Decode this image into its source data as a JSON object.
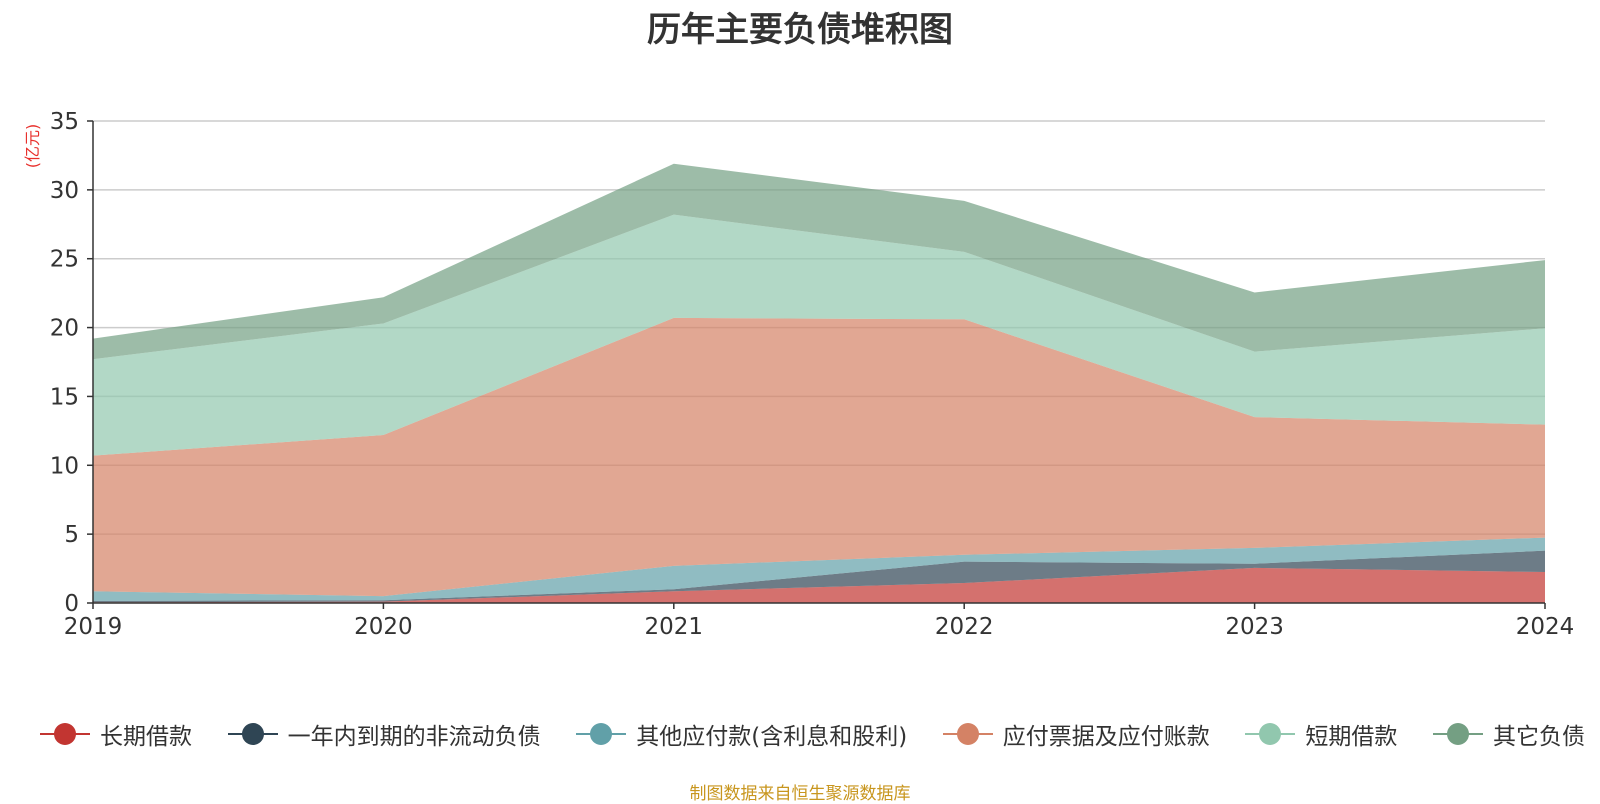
{
  "chart_data": {
    "type": "area",
    "stacked": true,
    "title": "历年主要负债堆积图",
    "ylabel": "(亿元)",
    "xlabel": "",
    "x": [
      "2019",
      "2020",
      "2021",
      "2022",
      "2023",
      "2024"
    ],
    "ylim": [
      0,
      35
    ],
    "yticks": [
      0,
      5,
      10,
      15,
      20,
      25,
      30,
      35
    ],
    "grid": true,
    "legend_position": "bottom",
    "series": [
      {
        "name": "长期借款",
        "color": "#c23531",
        "values": [
          0.05,
          0.1,
          0.85,
          1.45,
          2.55,
          2.25
        ]
      },
      {
        "name": "一年内到期的非流动负债",
        "color": "#2f4554",
        "values": [
          0.1,
          0.1,
          0.15,
          1.55,
          0.3,
          1.55
        ]
      },
      {
        "name": "其他应付款(含利息和股利)",
        "color": "#61a0a8",
        "values": [
          0.7,
          0.3,
          1.7,
          0.5,
          1.15,
          0.95
        ]
      },
      {
        "name": "应付票据及应付账款",
        "color": "#d48265",
        "values": [
          9.85,
          11.7,
          18.0,
          17.1,
          9.5,
          8.2
        ]
      },
      {
        "name": "短期借款",
        "color": "#91c7ae",
        "values": [
          7.0,
          8.1,
          7.5,
          4.9,
          4.75,
          7.0
        ]
      },
      {
        "name": "其它负债",
        "color": "#749f83",
        "values": [
          1.5,
          1.9,
          3.7,
          3.7,
          4.3,
          4.95
        ]
      }
    ]
  },
  "source_note": "制图数据来自恒生聚源数据库"
}
